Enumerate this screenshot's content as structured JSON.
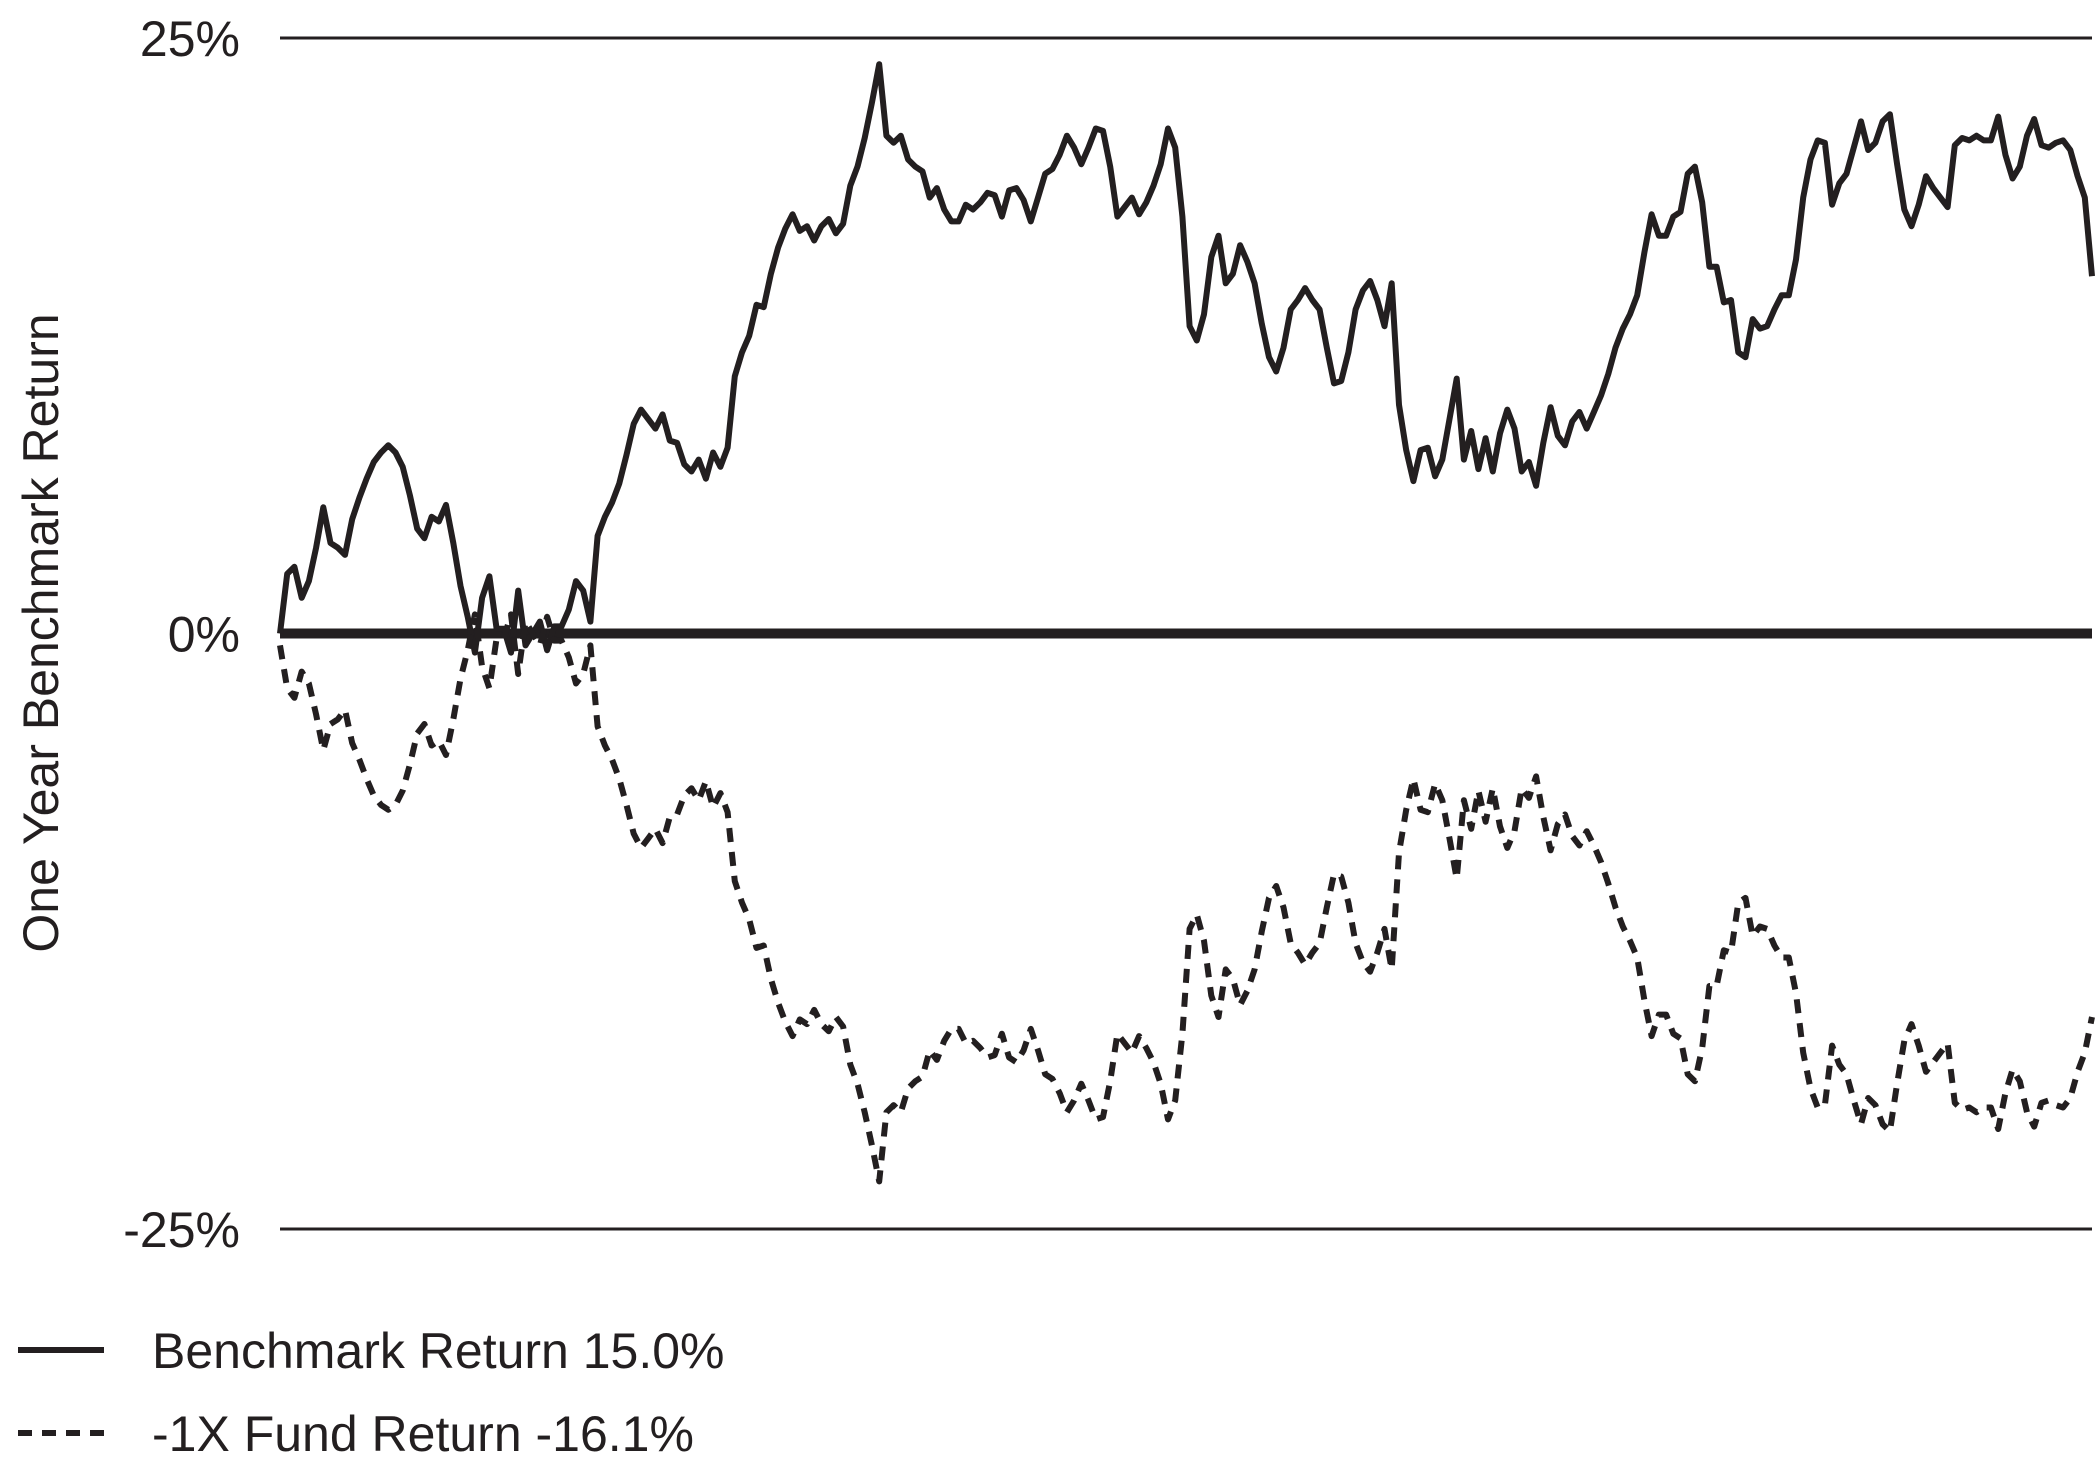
{
  "chart_data": {
    "type": "line",
    "title": "",
    "xlabel": "",
    "ylabel": "One Year Benchmark Return",
    "ylim": [
      -25,
      25
    ],
    "yticks": [
      {
        "value": 25,
        "label": "25%"
      },
      {
        "value": 0,
        "label": "0%"
      },
      {
        "value": -25,
        "label": "-25%"
      }
    ],
    "grid": "horizontal lines at ±25%, heavy line at 0%",
    "legend_position": "bottom-left",
    "series": [
      {
        "name": "Benchmark Return 15.0%",
        "style": "solid",
        "color": "#231f20",
        "values": [
          0.0,
          2.5,
          2.8,
          1.5,
          2.2,
          3.6,
          5.3,
          3.8,
          3.6,
          3.3,
          4.8,
          5.7,
          6.5,
          7.2,
          7.6,
          7.9,
          7.6,
          7.0,
          5.8,
          4.4,
          4.0,
          4.9,
          4.7,
          5.4,
          3.8,
          2.0,
          0.7,
          -0.8,
          1.5,
          2.4,
          0.2,
          0.2,
          -0.8,
          1.8,
          -0.5,
          0.0,
          0.5,
          -0.7,
          0.3,
          0.3,
          1.0,
          2.2,
          1.8,
          0.5,
          4.1,
          4.9,
          5.5,
          6.3,
          7.5,
          8.8,
          9.4,
          9.0,
          8.6,
          9.2,
          8.1,
          8.0,
          7.1,
          6.8,
          7.3,
          6.5,
          7.6,
          7.0,
          7.8,
          10.8,
          11.8,
          12.5,
          13.8,
          13.7,
          15.1,
          16.2,
          17.0,
          17.6,
          16.9,
          17.1,
          16.5,
          17.1,
          17.4,
          16.8,
          17.2,
          18.8,
          19.6,
          20.8,
          22.3,
          23.9,
          20.9,
          20.6,
          20.9,
          19.9,
          19.6,
          19.4,
          18.3,
          18.7,
          17.8,
          17.3,
          17.3,
          18.0,
          17.8,
          18.1,
          18.5,
          18.4,
          17.5,
          18.6,
          18.7,
          18.2,
          17.3,
          18.3,
          19.3,
          19.5,
          20.1,
          20.9,
          20.4,
          19.7,
          20.4,
          21.2,
          21.1,
          19.6,
          17.5,
          17.9,
          18.3,
          17.6,
          18.1,
          18.8,
          19.7,
          21.2,
          20.4,
          17.5,
          12.9,
          12.3,
          13.4,
          15.8,
          16.7,
          14.7,
          15.1,
          16.3,
          15.6,
          14.7,
          13.0,
          11.6,
          11.0,
          12.0,
          13.6,
          14.0,
          14.5,
          14.0,
          13.6,
          12.0,
          10.5,
          10.6,
          11.8,
          13.6,
          14.4,
          14.8,
          14.0,
          12.9,
          14.7,
          9.6,
          7.7,
          6.4,
          7.7,
          7.8,
          6.6,
          7.3,
          9.0,
          10.7,
          7.3,
          8.5,
          6.9,
          8.2,
          6.8,
          8.4,
          9.4,
          8.6,
          6.8,
          7.2,
          6.2,
          8.0,
          9.5,
          8.3,
          7.9,
          8.9,
          9.3,
          8.6,
          9.3,
          10.0,
          10.9,
          12.0,
          12.8,
          13.4,
          14.2,
          16.0,
          17.6,
          16.7,
          16.7,
          17.5,
          17.7,
          19.3,
          19.6,
          18.1,
          15.4,
          15.4,
          13.9,
          14.0,
          11.8,
          11.6,
          13.2,
          12.8,
          12.9,
          13.6,
          14.2,
          14.2,
          15.7,
          18.3,
          19.9,
          20.7,
          20.6,
          18.0,
          18.9,
          19.3,
          20.4,
          21.5,
          20.3,
          20.6,
          21.5,
          21.8,
          19.7,
          17.8,
          17.1,
          18.0,
          19.2,
          18.7,
          18.3,
          17.9,
          20.5,
          20.8,
          20.7,
          20.9,
          20.7,
          20.7,
          21.7,
          20.1,
          19.1,
          19.6,
          20.9,
          21.6,
          20.5,
          20.4,
          20.6,
          20.7,
          20.3,
          19.2,
          18.3,
          15.0
        ]
      },
      {
        "name": "-1X Fund Return -16.1%",
        "style": "dashed",
        "color": "#231f20",
        "values": [
          -0.5,
          -2.3,
          -2.7,
          -1.6,
          -2.1,
          -3.4,
          -4.9,
          -3.8,
          -3.6,
          -3.2,
          -4.6,
          -5.3,
          -6.1,
          -6.8,
          -7.2,
          -7.4,
          -7.2,
          -6.6,
          -5.5,
          -4.2,
          -3.8,
          -4.7,
          -4.5,
          -5.1,
          -3.6,
          -1.9,
          -0.7,
          0.8,
          -1.4,
          -2.3,
          -0.2,
          -0.2,
          0.8,
          -1.7,
          0.5,
          0.0,
          -0.5,
          0.7,
          -0.3,
          -0.3,
          -1.0,
          -2.1,
          -1.7,
          -0.5,
          -3.9,
          -4.7,
          -5.3,
          -6.1,
          -7.2,
          -8.4,
          -9.0,
          -8.6,
          -8.2,
          -8.8,
          -7.7,
          -7.6,
          -6.8,
          -6.5,
          -7.0,
          -6.2,
          -7.3,
          -6.7,
          -7.5,
          -10.4,
          -11.3,
          -12.0,
          -13.2,
          -13.1,
          -14.5,
          -15.5,
          -16.3,
          -16.9,
          -16.2,
          -16.4,
          -15.8,
          -16.4,
          -16.7,
          -16.1,
          -16.5,
          -18.1,
          -18.9,
          -20.1,
          -21.5,
          -23.0,
          -20.1,
          -19.8,
          -20.1,
          -19.1,
          -18.8,
          -18.6,
          -17.5,
          -17.9,
          -17.1,
          -16.6,
          -16.6,
          -17.2,
          -17.1,
          -17.4,
          -17.8,
          -17.7,
          -16.8,
          -17.8,
          -18.0,
          -17.5,
          -16.6,
          -17.5,
          -18.5,
          -18.7,
          -19.3,
          -20.1,
          -19.6,
          -18.9,
          -19.6,
          -20.4,
          -20.3,
          -18.8,
          -16.8,
          -17.2,
          -17.6,
          -16.9,
          -17.4,
          -18.0,
          -18.9,
          -20.4,
          -19.6,
          -16.8,
          -12.4,
          -11.8,
          -12.9,
          -15.2,
          -16.1,
          -14.1,
          -14.5,
          -15.6,
          -15.0,
          -14.1,
          -12.5,
          -11.1,
          -10.6,
          -11.5,
          -13.0,
          -13.4,
          -13.9,
          -13.4,
          -13.0,
          -11.5,
          -10.1,
          -10.2,
          -11.3,
          -13.0,
          -13.8,
          -14.2,
          -13.4,
          -12.4,
          -14.1,
          -9.2,
          -7.4,
          -6.1,
          -7.4,
          -7.5,
          -6.3,
          -7.0,
          -8.6,
          -10.3,
          -7.0,
          -8.2,
          -6.6,
          -7.9,
          -6.5,
          -8.1,
          -9.0,
          -8.3,
          -6.5,
          -6.9,
          -6.0,
          -7.7,
          -9.1,
          -8.0,
          -7.6,
          -8.5,
          -8.9,
          -8.3,
          -8.9,
          -9.6,
          -10.5,
          -11.5,
          -12.3,
          -12.9,
          -13.6,
          -15.4,
          -16.9,
          -16.0,
          -16.0,
          -16.8,
          -17.0,
          -18.5,
          -18.8,
          -17.4,
          -14.8,
          -14.8,
          -13.3,
          -13.4,
          -11.3,
          -11.1,
          -12.7,
          -12.3,
          -12.4,
          -13.1,
          -13.6,
          -13.6,
          -15.1,
          -17.6,
          -19.1,
          -19.9,
          -19.8,
          -17.3,
          -18.1,
          -18.5,
          -19.6,
          -20.6,
          -19.5,
          -19.8,
          -20.6,
          -20.9,
          -18.9,
          -17.1,
          -16.4,
          -17.3,
          -18.4,
          -18.0,
          -17.6,
          -17.2,
          -19.7,
          -20.0,
          -19.9,
          -20.1,
          -19.9,
          -19.9,
          -20.8,
          -19.3,
          -18.3,
          -18.8,
          -20.1,
          -20.7,
          -19.7,
          -19.6,
          -19.8,
          -19.9,
          -19.5,
          -18.4,
          -17.6,
          -16.1
        ]
      }
    ]
  }
}
